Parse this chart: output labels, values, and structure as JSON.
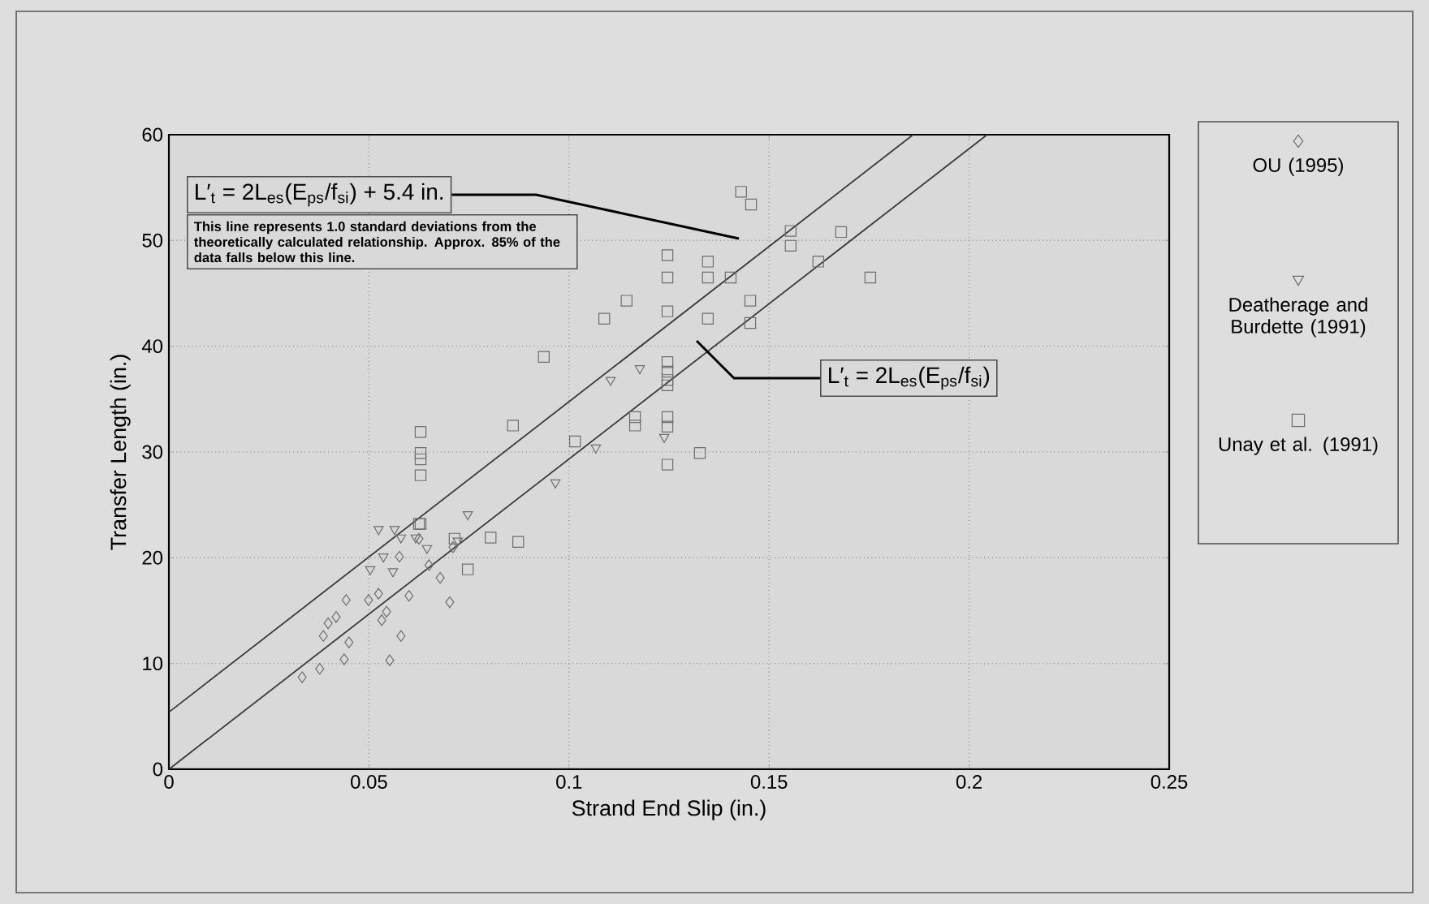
{
  "chart_data": {
    "type": "scatter",
    "xlabel": "Strand End Slip (in.)",
    "ylabel": "Transfer Length (in.)",
    "xlim": [
      0,
      0.25
    ],
    "ylim": [
      0,
      60
    ],
    "xticks": [
      0,
      0.05,
      0.1,
      0.15,
      0.2,
      0.25
    ],
    "yticks": [
      0,
      10,
      20,
      30,
      40,
      50,
      60
    ],
    "grid": true,
    "legend": "right",
    "annotations": [
      "L′$_{t}$ = 2L$_{es}$(E$_{ps}$/f$_{si}$) + 5.4 in.",
      "This line represents 1.0 standard deviations from the theoretically calculated relationship.  Approx. 85% of the data falls below this line.",
      "L′$_{t}$ = 2L$_{es}$(E$_{ps}$/f$_{si}$)"
    ],
    "series": [
      {
        "name": "OU (1995)",
        "type": "scatter",
        "marker": "diamond",
        "color": "#6e6e6e",
        "x": [
          0.0333,
          0.0377,
          0.0438,
          0.045,
          0.0443,
          0.0418,
          0.0398,
          0.0386,
          0.0552,
          0.058,
          0.0499,
          0.0524,
          0.0532,
          0.0544,
          0.06,
          0.0576,
          0.065,
          0.0678,
          0.0702,
          0.071,
          0.0625
        ],
        "values": [
          8.7,
          9.5,
          10.4,
          12.0,
          16.0,
          14.4,
          13.8,
          12.6,
          10.3,
          12.6,
          16.0,
          16.6,
          14.1,
          14.9,
          16.4,
          20.1,
          19.3,
          18.1,
          15.8,
          21.0,
          21.8
        ]
      },
      {
        "name": "Deatherage and Burdette (1991)",
        "type": "scatter",
        "marker": "triangle",
        "color": "#6e6e6e",
        "x": [
          0.0524,
          0.0564,
          0.058,
          0.0617,
          0.0536,
          0.0503,
          0.056,
          0.0645,
          0.0722,
          0.0747,
          0.1104,
          0.1177,
          0.1067,
          0.0966,
          0.1238
        ],
        "values": [
          22.7,
          22.7,
          21.9,
          21.9,
          20.1,
          18.9,
          18.7,
          20.9,
          21.6,
          24.1,
          36.8,
          37.9,
          30.4,
          27.1,
          31.4
        ]
      },
      {
        "name": "Unay et al. (1991)",
        "type": "scatter",
        "marker": "square",
        "color": "#6e6e6e",
        "x": [
          0.0747,
          0.0804,
          0.0873,
          0.0625,
          0.0714,
          0.0629,
          0.0629,
          0.0629,
          0.0629,
          0.0629,
          0.086,
          0.0937,
          0.1015,
          0.1088,
          0.1144,
          0.1165,
          0.1165,
          0.1246,
          0.1246,
          0.1246,
          0.1246,
          0.1246,
          0.1246,
          0.1246,
          0.1246,
          0.1246,
          0.1246,
          0.1327,
          0.1347,
          0.1347,
          0.1347,
          0.1404,
          0.1453,
          0.1453,
          0.143,
          0.1455,
          0.1554,
          0.1554,
          0.168,
          0.1623,
          0.1753
        ],
        "values": [
          18.9,
          21.9,
          21.5,
          23.2,
          21.8,
          31.9,
          29.9,
          29.3,
          27.8,
          23.2,
          32.5,
          39.0,
          31.0,
          42.6,
          44.3,
          33.3,
          32.5,
          48.6,
          46.5,
          43.3,
          38.5,
          37.6,
          36.8,
          36.3,
          33.3,
          32.4,
          28.8,
          29.9,
          48.0,
          46.5,
          42.6,
          46.5,
          44.3,
          42.2,
          54.6,
          53.4,
          50.9,
          49.5,
          50.8,
          48.0,
          46.5
        ]
      },
      {
        "type": "line",
        "marker": "none",
        "color": "#3a3a3a",
        "x": [
          0,
          0.186
        ],
        "values": [
          5.4,
          60
        ]
      },
      {
        "type": "line",
        "marker": "none",
        "color": "#3a3a3a",
        "x": [
          0,
          0.2045
        ],
        "values": [
          0,
          60
        ]
      }
    ]
  }
}
